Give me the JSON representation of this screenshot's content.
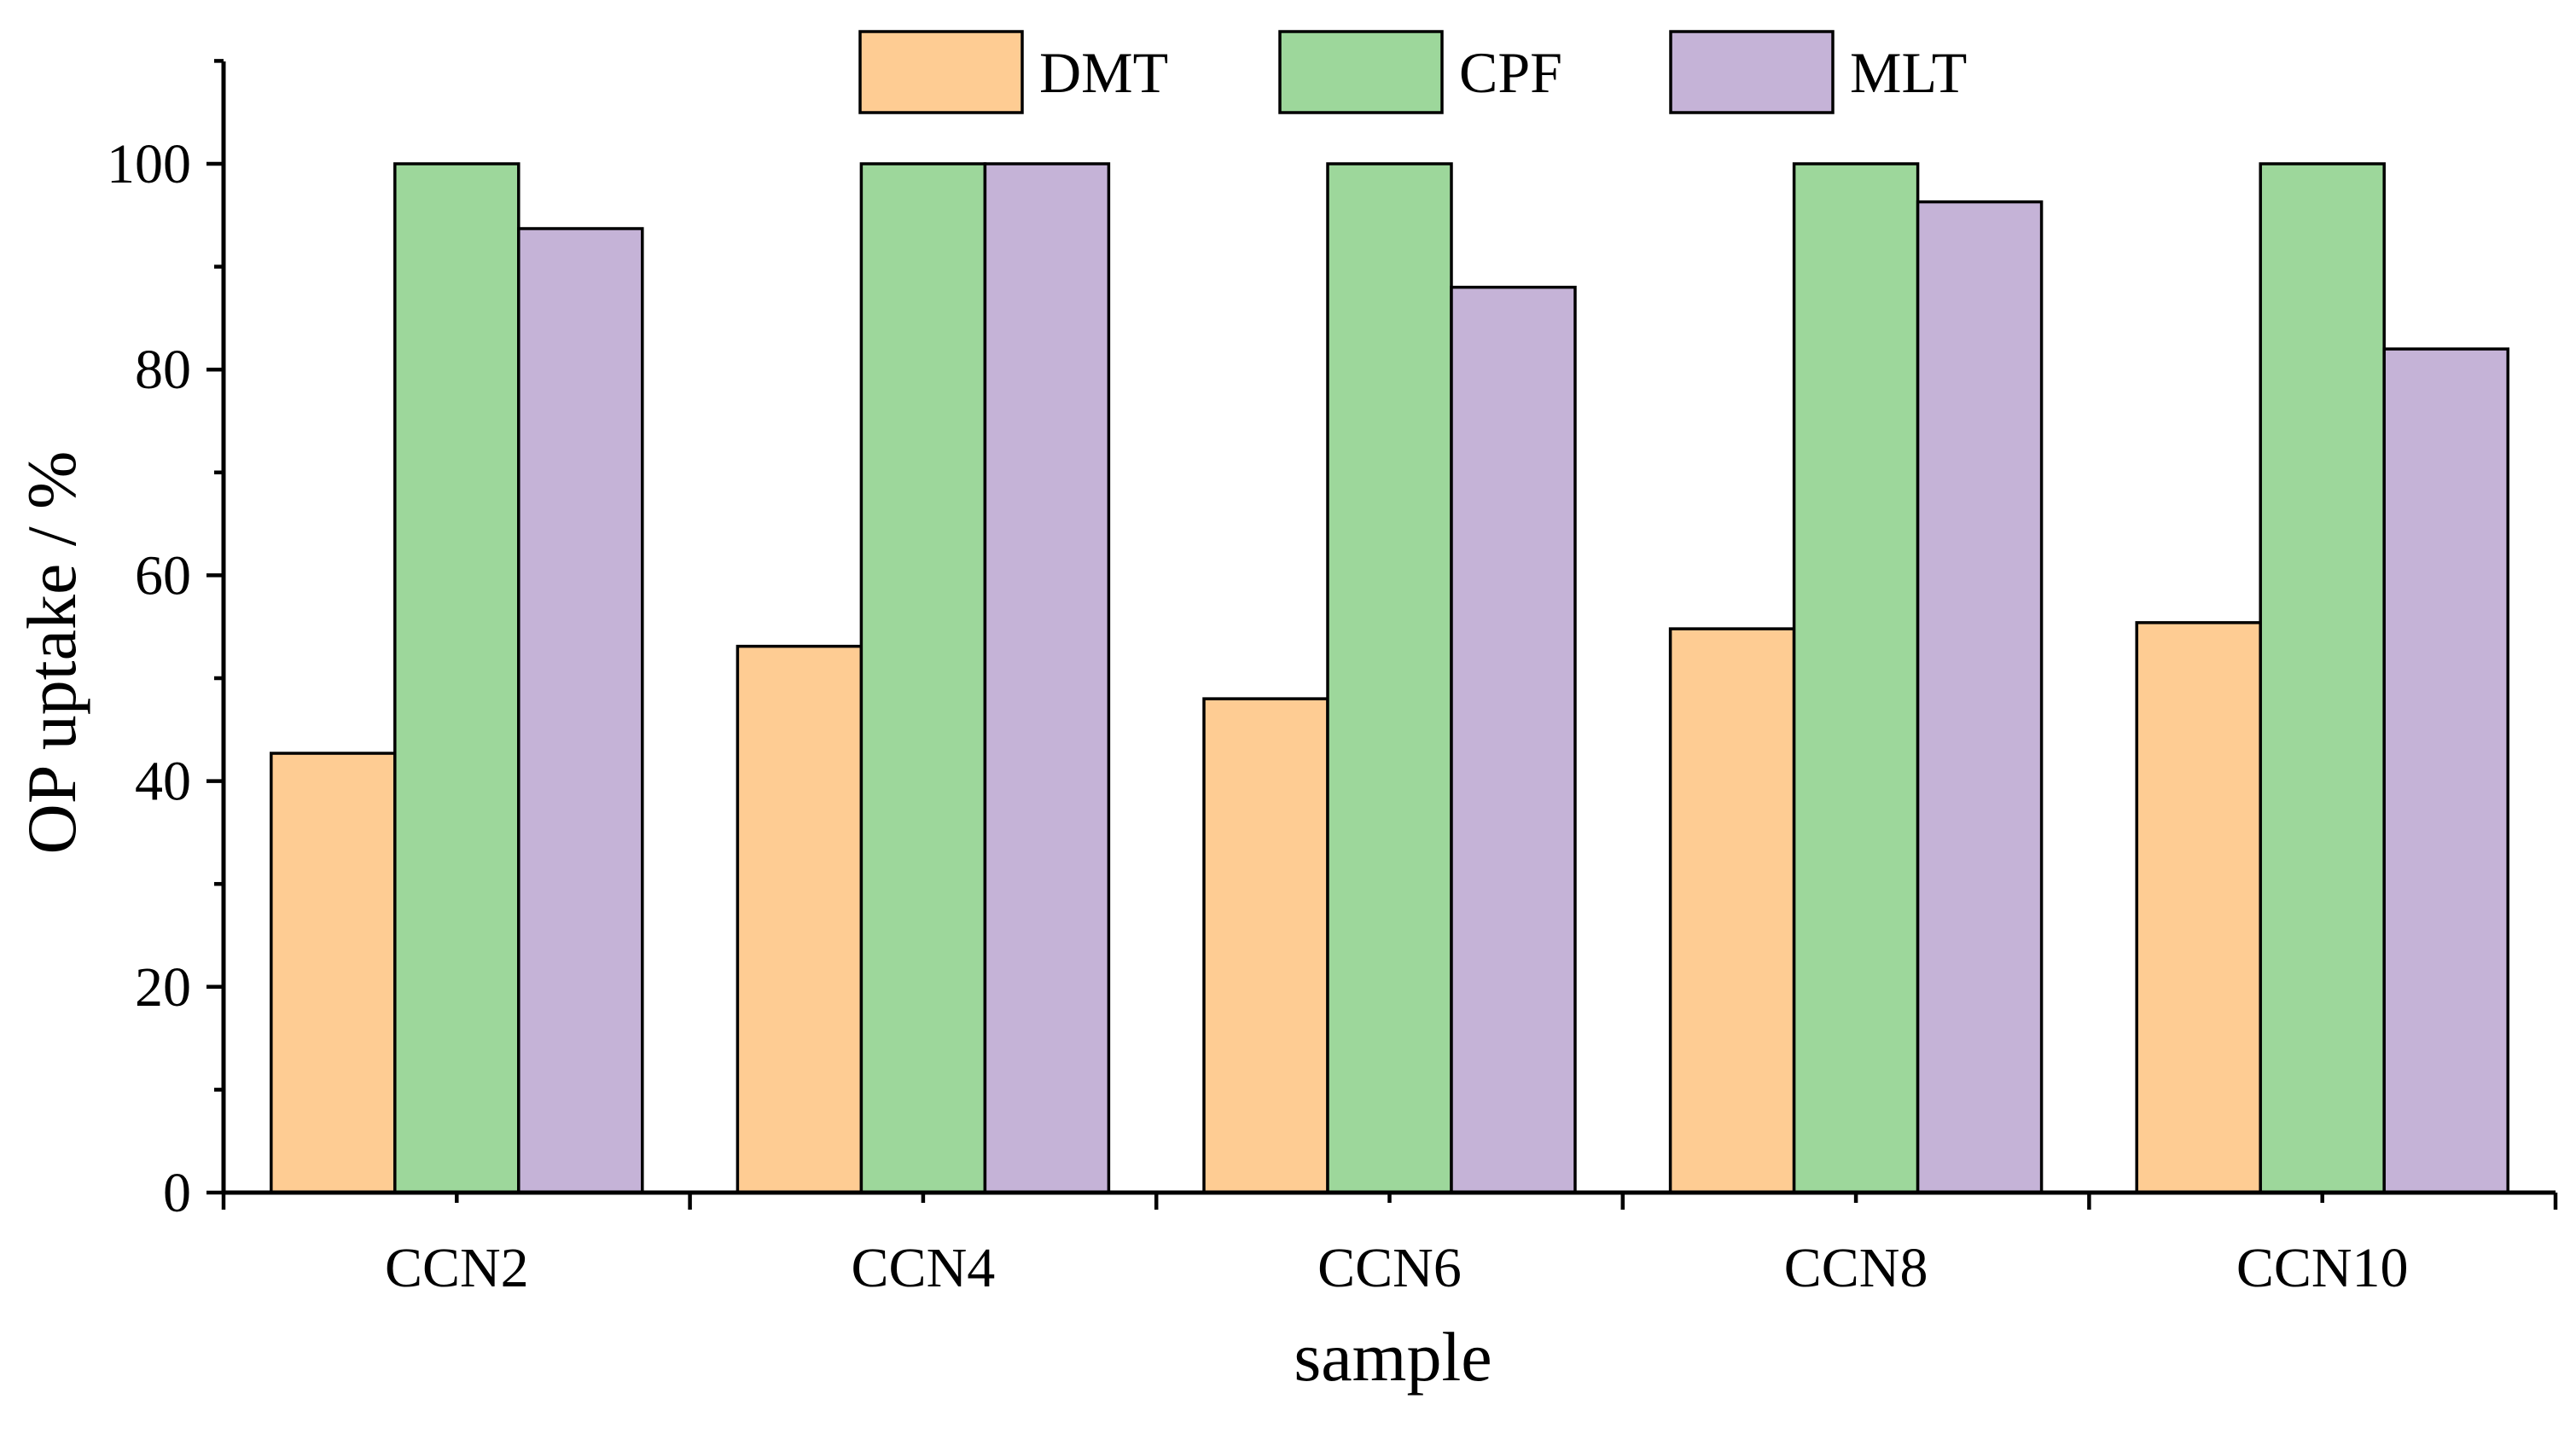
{
  "chart_data": {
    "type": "bar",
    "title": "",
    "xlabel": "sample",
    "ylabel": "OP uptake / %",
    "categories": [
      "CCN2",
      "CCN4",
      "CCN6",
      "CCN8",
      "CCN10"
    ],
    "ylim": [
      0,
      110
    ],
    "yticks": [
      0,
      20,
      40,
      60,
      80,
      100
    ],
    "grid": false,
    "legend_position": "top-center",
    "series": [
      {
        "name": "DMT",
        "color": "#FECC93",
        "values": [
          42.7,
          53.1,
          48.0,
          54.8,
          55.4
        ]
      },
      {
        "name": "CPF",
        "color": "#9DD79B",
        "values": [
          100,
          100,
          100,
          100,
          100
        ]
      },
      {
        "name": "MLT",
        "color": "#C5B3D7",
        "values": [
          93.7,
          100,
          88.0,
          96.3,
          82.0
        ]
      }
    ]
  }
}
